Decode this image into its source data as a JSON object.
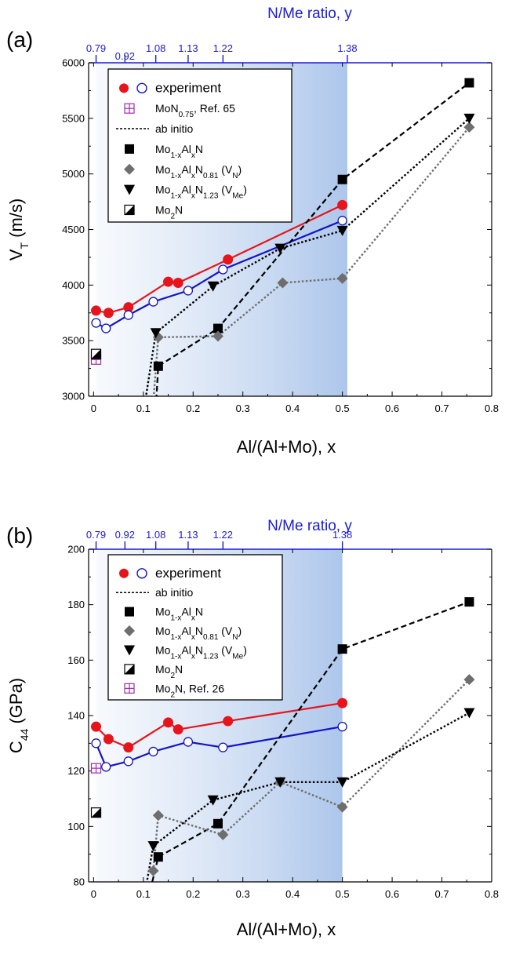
{
  "chart_data": [
    {
      "panel_label": "(a)",
      "type": "line",
      "xlabel": "Al/(Al+Mo), x",
      "ylabel": "V",
      "ylabel_sub": "T",
      "ylabel_unit": " (m/s)",
      "top_axis_title": "N/Me ratio, y",
      "top_ticks": [
        {
          "x": 0.005,
          "label": "0.79"
        },
        {
          "x": 0.063,
          "label": "0.92"
        },
        {
          "x": 0.125,
          "label": "1.08"
        },
        {
          "x": 0.19,
          "label": "1.13"
        },
        {
          "x": 0.26,
          "label": "1.22"
        },
        {
          "x": 0.51,
          "label": "1.38"
        }
      ],
      "xlim": [
        -0.01,
        0.8
      ],
      "ylim": [
        3000,
        6000
      ],
      "xticks": [
        0,
        0.1,
        0.2,
        0.3,
        0.4,
        0.5,
        0.6,
        0.7,
        0.8
      ],
      "xtick_labels": [
        "0",
        "0.1",
        "0.2",
        "0.3",
        "0.4",
        "0.5",
        "0.6",
        "0.7",
        "0.8"
      ],
      "yticks": [
        3000,
        3500,
        4000,
        4500,
        5000,
        5500,
        6000
      ],
      "ytick_labels": [
        "3000",
        "3500",
        "4000",
        "4500",
        "5000",
        "5500",
        "6000"
      ],
      "shade_range": [
        0.005,
        0.51
      ],
      "series": [
        {
          "key": "exp_filled",
          "marker": "circle-filled",
          "color": "#e8141b",
          "line": "solid",
          "x": [
            0.005,
            0.03,
            0.07,
            0.15,
            0.17,
            0.27,
            0.5
          ],
          "y": [
            3770,
            3750,
            3800,
            4030,
            4020,
            4230,
            4720
          ]
        },
        {
          "key": "exp_open",
          "marker": "circle-open",
          "color": "#1414c8",
          "line": "solid",
          "x": [
            0.005,
            0.025,
            0.07,
            0.12,
            0.19,
            0.26,
            0.5
          ],
          "y": [
            3660,
            3610,
            3730,
            3850,
            3950,
            4140,
            4580
          ]
        },
        {
          "key": "mon075",
          "marker": "square-cross",
          "color": "#a02cb0",
          "line": "none",
          "x": [
            0.005
          ],
          "y": [
            3330
          ]
        },
        {
          "key": "moalxn",
          "marker": "square",
          "color": "#000000",
          "line": "dashed",
          "x": [
            0.12,
            0.13,
            0.25,
            0.5,
            0.755
          ],
          "y": [
            2500,
            3270,
            3610,
            4950,
            5820
          ]
        },
        {
          "key": "moalxn081",
          "marker": "diamond",
          "color": "#6e6e6e",
          "line": "dotted-gray",
          "x": [
            0.12,
            0.13,
            0.25,
            0.38,
            0.5,
            0.755
          ],
          "y": [
            2950,
            3530,
            3540,
            4020,
            4060,
            5420
          ]
        },
        {
          "key": "moalxn123",
          "marker": "triangle-down",
          "color": "#000000",
          "line": "dotted",
          "x": [
            0.095,
            0.125,
            0.24,
            0.375,
            0.5,
            0.755
          ],
          "y": [
            2700,
            3570,
            3990,
            4330,
            4490,
            5500
          ]
        },
        {
          "key": "mo2n",
          "marker": "square-half",
          "color": "#000000",
          "line": "none",
          "x": [
            0.005
          ],
          "y": [
            3380
          ]
        }
      ],
      "legend": {
        "placement": "top-left",
        "entries": [
          {
            "key": "exp",
            "text": "experiment"
          },
          {
            "key": "mon075",
            "text": "MoN",
            "sub": "0.75",
            "tail": ", Ref. 65"
          },
          {
            "key": "abinitio",
            "text": "ab initio"
          },
          {
            "key": "moalxn",
            "text": "Mo",
            "sub1": "1-x",
            "mid": "Al",
            "sub2": "x",
            "tail": "N"
          },
          {
            "key": "moalxn081",
            "text": "Mo",
            "sub1": "1-x",
            "mid": "Al",
            "sub2": "x",
            "mid2": "N",
            "sub3": "0.81",
            "tail": " (V",
            "sub4": "N",
            "end": ")"
          },
          {
            "key": "moalxn123",
            "text": "Mo",
            "sub1": "1-x",
            "mid": "Al",
            "sub2": "x",
            "mid2": "N",
            "sub3": "1.23",
            "tail": " (V",
            "sub4": "Me",
            "end": ")"
          },
          {
            "key": "mo2n",
            "text": "Mo",
            "sub1": "2",
            "tail": "N"
          }
        ]
      },
      "grid": false
    },
    {
      "panel_label": "(b)",
      "type": "line",
      "xlabel": "Al/(Al+Mo), x",
      "ylabel": "C",
      "ylabel_sub": "44",
      "ylabel_unit": " (GPa)",
      "top_axis_title": "N/Me ratio, y",
      "top_ticks": [
        {
          "x": 0.005,
          "label": "0.79"
        },
        {
          "x": 0.063,
          "label": "0.92"
        },
        {
          "x": 0.125,
          "label": "1.08"
        },
        {
          "x": 0.19,
          "label": "1.13"
        },
        {
          "x": 0.26,
          "label": "1.22"
        },
        {
          "x": 0.5,
          "label": "1.38"
        }
      ],
      "xlim": [
        -0.01,
        0.8
      ],
      "ylim": [
        80,
        200
      ],
      "xticks": [
        0,
        0.1,
        0.2,
        0.3,
        0.4,
        0.5,
        0.6,
        0.7,
        0.8
      ],
      "xtick_labels": [
        "0",
        "0.1",
        "0.2",
        "0.3",
        "0.4",
        "0.5",
        "0.6",
        "0.7",
        "0.8"
      ],
      "yticks": [
        80,
        100,
        120,
        140,
        160,
        180,
        200
      ],
      "ytick_labels": [
        "80",
        "100",
        "120",
        "140",
        "160",
        "180",
        "200"
      ],
      "shade_range": [
        0.005,
        0.5
      ],
      "series": [
        {
          "key": "exp_filled",
          "marker": "circle-filled",
          "color": "#e8141b",
          "line": "solid",
          "x": [
            0.005,
            0.03,
            0.07,
            0.15,
            0.17,
            0.27,
            0.5
          ],
          "y": [
            136,
            131.5,
            128.5,
            137.5,
            135,
            138,
            144.5
          ]
        },
        {
          "key": "exp_open",
          "marker": "circle-open",
          "color": "#1414c8",
          "line": "solid",
          "x": [
            0.005,
            0.025,
            0.07,
            0.12,
            0.19,
            0.26,
            0.5
          ],
          "y": [
            130,
            121.5,
            123.5,
            127,
            130.5,
            128.5,
            136
          ]
        },
        {
          "key": "mo2n_ref",
          "marker": "square-cross",
          "color": "#a02cb0",
          "line": "none",
          "x": [
            0.005
          ],
          "y": [
            121
          ]
        },
        {
          "key": "moalxn",
          "marker": "square",
          "color": "#000000",
          "line": "dashed",
          "x": [
            0.11,
            0.13,
            0.25,
            0.5,
            0.755
          ],
          "y": [
            74,
            89,
            101,
            164,
            181
          ]
        },
        {
          "key": "moalxn081",
          "marker": "diamond",
          "color": "#6e6e6e",
          "line": "dotted-gray",
          "x": [
            0.12,
            0.13,
            0.26,
            0.375,
            0.5,
            0.755
          ],
          "y": [
            84,
            104,
            97,
            116,
            107,
            153
          ]
        },
        {
          "key": "moalxn123",
          "marker": "triangle-down",
          "color": "#000000",
          "line": "dotted",
          "x": [
            0.105,
            0.12,
            0.24,
            0.375,
            0.5,
            0.755
          ],
          "y": [
            78,
            93,
            109.5,
            116,
            116,
            141
          ]
        },
        {
          "key": "mo2n",
          "marker": "square-half",
          "color": "#000000",
          "line": "none",
          "x": [
            0.005
          ],
          "y": [
            105
          ]
        }
      ],
      "legend": {
        "placement": "top-left",
        "entries": [
          {
            "key": "exp",
            "text": "experiment"
          },
          {
            "key": "abinitio",
            "text": "ab initio"
          },
          {
            "key": "moalxn",
            "text": "Mo",
            "sub1": "1-x",
            "mid": "Al",
            "sub2": "x",
            "tail": "N"
          },
          {
            "key": "moalxn081",
            "text": "Mo",
            "sub1": "1-x",
            "mid": "Al",
            "sub2": "x",
            "mid2": "N",
            "sub3": "0.81",
            "tail": " (V",
            "sub4": "N",
            "end": ")"
          },
          {
            "key": "moalxn123",
            "text": "Mo",
            "sub1": "1-x",
            "mid": "Al",
            "sub2": "x",
            "mid2": "N",
            "sub3": "1.23",
            "tail": " (V",
            "sub4": "Me",
            "end": ")"
          },
          {
            "key": "mo2n",
            "text": "Mo",
            "sub1": "2",
            "tail": "N"
          },
          {
            "key": "mo2n_ref",
            "text": "Mo",
            "sub1": "2",
            "tail": "N, Ref. 26"
          }
        ]
      },
      "grid": false
    }
  ]
}
